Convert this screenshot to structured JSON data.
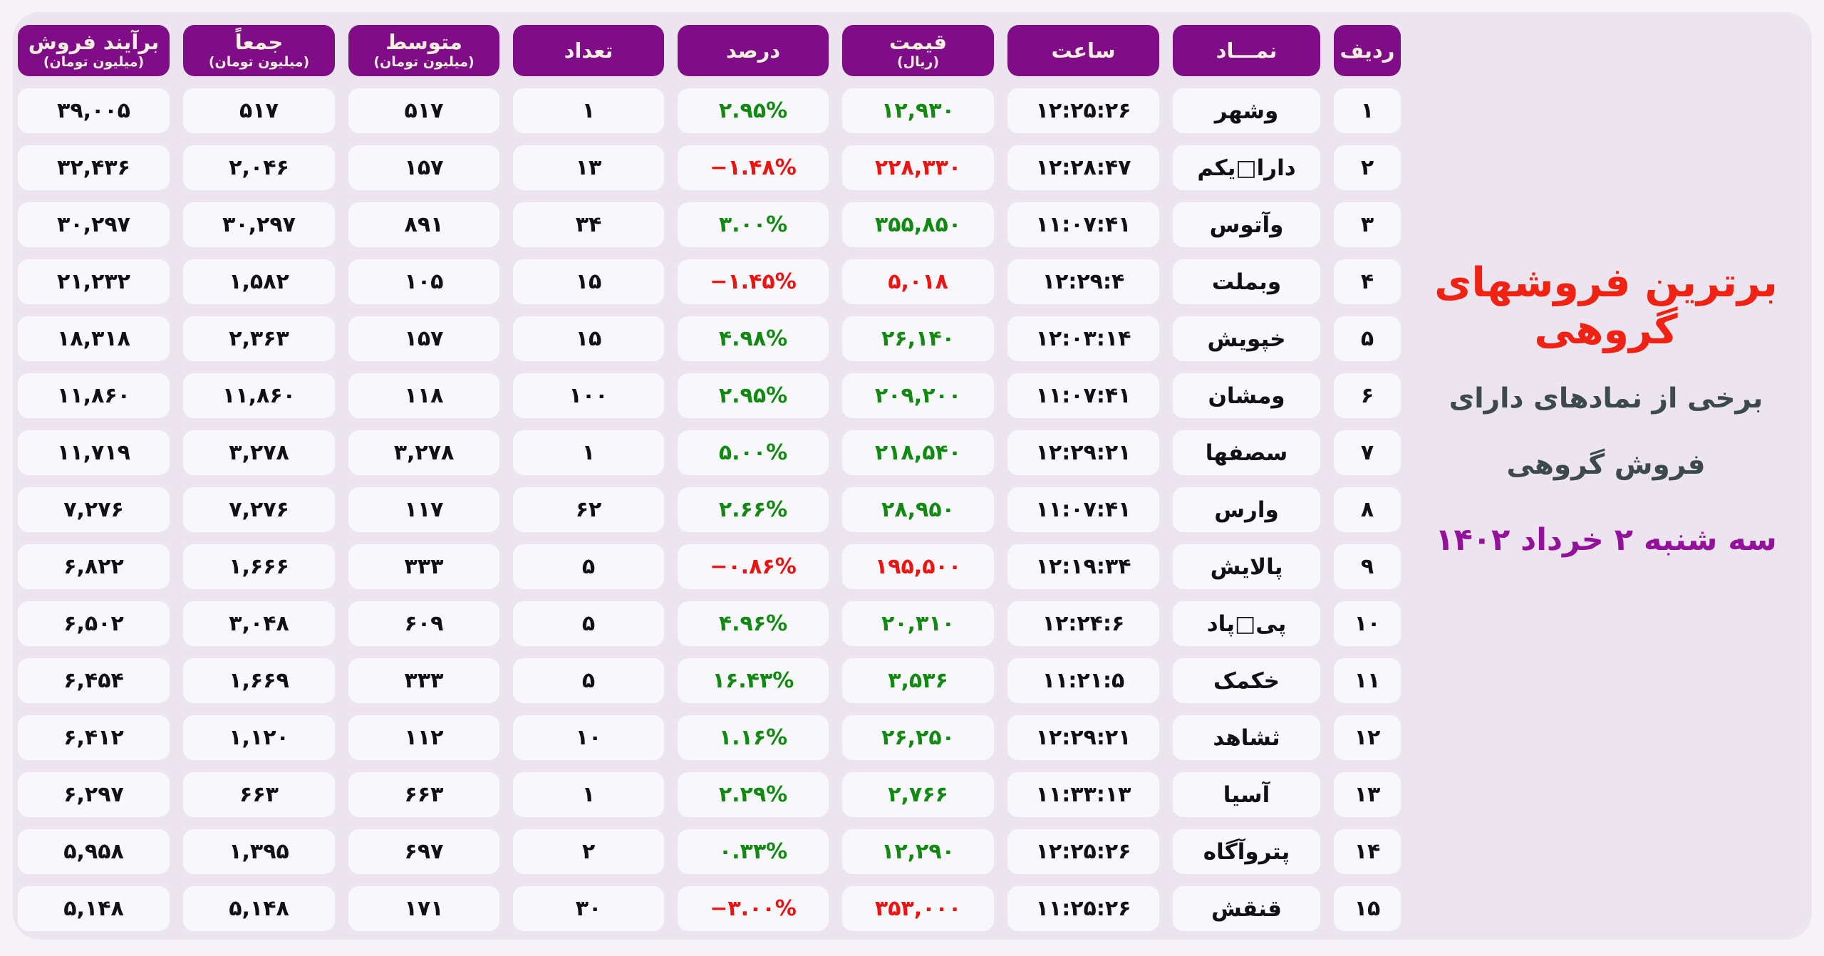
{
  "page": {
    "background": "#f5f3f6",
    "panel_background": "#ece4ee"
  },
  "heading": {
    "title": "برترین فروشهای گروهی",
    "subtitle_line1": "برخی از نمادهای دارای",
    "subtitle_line2": "فروش گروهی",
    "date": "سه شنبه ۲ خرداد ۱۴۰۲",
    "title_color": "#ef2213",
    "subtitle_color": "#3d4a4b",
    "date_color": "#93119b"
  },
  "colors": {
    "header_pill": "#7f0d87",
    "header_text": "#f6efdf",
    "cell_background": "#f8f7fc",
    "positive": "#128a12",
    "negative": "#ea1410",
    "value_text": "#101016"
  },
  "chart_data": {
    "type": "table",
    "direction": "rtl",
    "columns": [
      {
        "key": "rank",
        "label": "ردیف"
      },
      {
        "key": "symbol",
        "label": "نمـــاد"
      },
      {
        "key": "time",
        "label": "ساعت"
      },
      {
        "key": "price",
        "label": "قیمت",
        "sub": "(ریال)"
      },
      {
        "key": "percent",
        "label": "درصد"
      },
      {
        "key": "count",
        "label": "تعداد"
      },
      {
        "key": "average",
        "label": "متوسط",
        "sub": "(میلیون تومان)"
      },
      {
        "key": "total",
        "label": "جمعاً",
        "sub": "(میلیون تومان)"
      },
      {
        "key": "net",
        "label": "برآیند فروش",
        "sub": "(میلیون تومان)"
      }
    ],
    "rows": [
      {
        "rank": "۱",
        "symbol": "وشهر",
        "time": "۱۲:۲۵:۲۶",
        "price": "۱۲,۹۳۰",
        "percent": "۲.۹۵%",
        "count": "۱",
        "average": "۵۱۷",
        "total": "۵۱۷",
        "net": "۳۹,۰۰۵",
        "trend": "up"
      },
      {
        "rank": "۲",
        "symbol": "دارا□یکم",
        "time": "۱۲:۲۸:۴۷",
        "price": "۲۲۸,۳۳۰",
        "percent": "−۱.۴۸%",
        "count": "۱۳",
        "average": "۱۵۷",
        "total": "۲,۰۴۶",
        "net": "۳۲,۴۳۶",
        "trend": "down"
      },
      {
        "rank": "۳",
        "symbol": "وآتوس",
        "time": "۱۱:۰۷:۴۱",
        "price": "۳۵۵,۸۵۰",
        "percent": "۳.۰۰%",
        "count": "۳۴",
        "average": "۸۹۱",
        "total": "۳۰,۲۹۷",
        "net": "۳۰,۲۹۷",
        "trend": "up"
      },
      {
        "rank": "۴",
        "symbol": "وبملت",
        "time": "۱۲:۲۹:۴",
        "price": "۵,۰۱۸",
        "percent": "−۱.۴۵%",
        "count": "۱۵",
        "average": "۱۰۵",
        "total": "۱,۵۸۲",
        "net": "۲۱,۲۳۲",
        "trend": "down"
      },
      {
        "rank": "۵",
        "symbol": "خپویش",
        "time": "۱۲:۰۳:۱۴",
        "price": "۲۶,۱۴۰",
        "percent": "۴.۹۸%",
        "count": "۱۵",
        "average": "۱۵۷",
        "total": "۲,۳۶۳",
        "net": "۱۸,۳۱۸",
        "trend": "up"
      },
      {
        "rank": "۶",
        "symbol": "ومشان",
        "time": "۱۱:۰۷:۴۱",
        "price": "۲۰۹,۲۰۰",
        "percent": "۲.۹۵%",
        "count": "۱۰۰",
        "average": "۱۱۸",
        "total": "۱۱,۸۶۰",
        "net": "۱۱,۸۶۰",
        "trend": "up"
      },
      {
        "rank": "۷",
        "symbol": "سصفها",
        "time": "۱۲:۲۹:۲۱",
        "price": "۲۱۸,۵۴۰",
        "percent": "۵.۰۰%",
        "count": "۱",
        "average": "۳,۲۷۸",
        "total": "۳,۲۷۸",
        "net": "۱۱,۷۱۹",
        "trend": "up"
      },
      {
        "rank": "۸",
        "symbol": "وارس",
        "time": "۱۱:۰۷:۴۱",
        "price": "۲۸,۹۵۰",
        "percent": "۲.۶۶%",
        "count": "۶۲",
        "average": "۱۱۷",
        "total": "۷,۲۷۶",
        "net": "۷,۲۷۶",
        "trend": "up"
      },
      {
        "rank": "۹",
        "symbol": "پالایش",
        "time": "۱۲:۱۹:۳۴",
        "price": "۱۹۵,۵۰۰",
        "percent": "−۰.۸۶%",
        "count": "۵",
        "average": "۳۳۳",
        "total": "۱,۶۶۶",
        "net": "۶,۸۲۲",
        "trend": "down"
      },
      {
        "rank": "۱۰",
        "symbol": "پی□پاد",
        "time": "۱۲:۲۴:۶",
        "price": "۲۰,۳۱۰",
        "percent": "۴.۹۶%",
        "count": "۵",
        "average": "۶۰۹",
        "total": "۳,۰۴۸",
        "net": "۶,۵۰۲",
        "trend": "up"
      },
      {
        "rank": "۱۱",
        "symbol": "خکمک",
        "time": "۱۱:۲۱:۵",
        "price": "۳,۵۳۶",
        "percent": "۱۶.۴۳%",
        "count": "۵",
        "average": "۳۳۳",
        "total": "۱,۶۶۹",
        "net": "۶,۴۵۴",
        "trend": "up"
      },
      {
        "rank": "۱۲",
        "symbol": "ثشاهد",
        "time": "۱۲:۲۹:۲۱",
        "price": "۲۶,۲۵۰",
        "percent": "۱.۱۶%",
        "count": "۱۰",
        "average": "۱۱۲",
        "total": "۱,۱۲۰",
        "net": "۶,۴۱۲",
        "trend": "up"
      },
      {
        "rank": "۱۳",
        "symbol": "آسیا",
        "time": "۱۱:۳۳:۱۳",
        "price": "۲,۷۶۶",
        "percent": "۲.۲۹%",
        "count": "۱",
        "average": "۶۶۳",
        "total": "۶۶۳",
        "net": "۶,۲۹۷",
        "trend": "up"
      },
      {
        "rank": "۱۴",
        "symbol": "پتروآگاه",
        "time": "۱۲:۲۵:۲۶",
        "price": "۱۲,۲۹۰",
        "percent": "۰.۳۳%",
        "count": "۲",
        "average": "۶۹۷",
        "total": "۱,۳۹۵",
        "net": "۵,۹۵۸",
        "trend": "up"
      },
      {
        "rank": "۱۵",
        "symbol": "قنقش",
        "time": "۱۱:۲۵:۲۶",
        "price": "۳۵۳,۰۰۰",
        "percent": "−۳.۰۰%",
        "count": "۳۰",
        "average": "۱۷۱",
        "total": "۵,۱۴۸",
        "net": "۵,۱۴۸",
        "trend": "down"
      }
    ]
  }
}
